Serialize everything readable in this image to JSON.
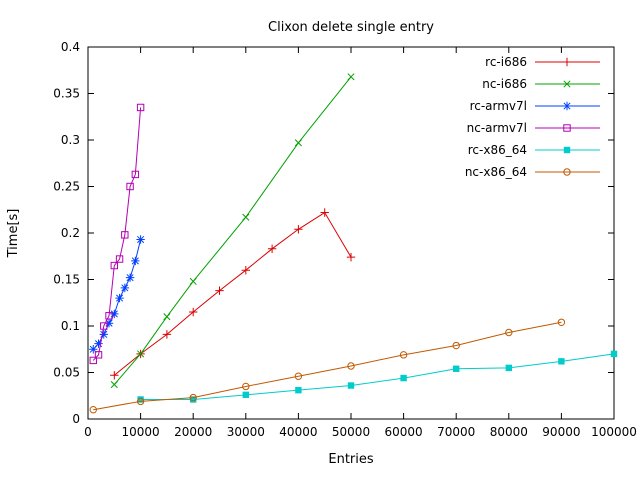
{
  "window": {
    "background": "#ffffff",
    "border_color": "#000000"
  },
  "chart_data": {
    "type": "line",
    "title": "Clixon delete single entry",
    "xlabel": "Entries",
    "ylabel": "Time[s]",
    "xlim": [
      0,
      100000
    ],
    "ylim": [
      0,
      0.4
    ],
    "grid": false,
    "legend_position": "top-right-inside",
    "x_ticks": [
      0,
      10000,
      20000,
      30000,
      40000,
      50000,
      60000,
      70000,
      80000,
      90000,
      100000
    ],
    "x_tick_labels": [
      "0",
      "10000",
      "20000",
      "30000",
      "40000",
      "50000",
      "60000",
      "70000",
      "80000",
      "90000",
      "100000"
    ],
    "y_ticks": [
      0,
      0.05,
      0.1,
      0.15,
      0.2,
      0.25,
      0.3,
      0.35,
      0.4
    ],
    "y_tick_labels": [
      "0",
      "0.05",
      "0.1",
      "0.15",
      "0.2",
      "0.25",
      "0.3",
      "0.35",
      "0.4"
    ],
    "series": [
      {
        "name": "rc-i686",
        "color": "#dd0000",
        "marker": "plus",
        "x": [
          5000,
          10000,
          15000,
          20000,
          25000,
          30000,
          35000,
          40000,
          45000,
          50000
        ],
        "y": [
          0.047,
          0.07,
          0.091,
          0.115,
          0.138,
          0.16,
          0.183,
          0.204,
          0.222,
          0.174
        ]
      },
      {
        "name": "nc-i686",
        "color": "#00a000",
        "marker": "cross",
        "x": [
          5000,
          10000,
          15000,
          20000,
          30000,
          40000,
          50000
        ],
        "y": [
          0.037,
          0.07,
          0.11,
          0.148,
          0.217,
          0.297,
          0.368
        ]
      },
      {
        "name": "rc-armv7l",
        "color": "#0040ff",
        "marker": "asterisk",
        "x": [
          1000,
          2000,
          3000,
          4000,
          5000,
          6000,
          7000,
          8000,
          9000,
          10000
        ],
        "y": [
          0.075,
          0.081,
          0.091,
          0.103,
          0.113,
          0.13,
          0.141,
          0.152,
          0.17,
          0.193
        ]
      },
      {
        "name": "nc-armv7l",
        "color": "#b400b4",
        "marker": "square-open",
        "x": [
          1000,
          2000,
          3000,
          4000,
          5000,
          6000,
          7000,
          8000,
          9000,
          10000
        ],
        "y": [
          0.063,
          0.069,
          0.1,
          0.111,
          0.165,
          0.172,
          0.198,
          0.25,
          0.263,
          0.335
        ]
      },
      {
        "name": "rc-x86_64",
        "color": "#00cccc",
        "marker": "square-filled",
        "x": [
          10000,
          20000,
          30000,
          40000,
          50000,
          60000,
          70000,
          80000,
          90000,
          100000
        ],
        "y": [
          0.021,
          0.021,
          0.026,
          0.031,
          0.036,
          0.044,
          0.054,
          0.055,
          0.062,
          0.07
        ]
      },
      {
        "name": "nc-x86_64",
        "color": "#c05a00",
        "marker": "circle-open",
        "x": [
          1000,
          10000,
          20000,
          30000,
          40000,
          50000,
          60000,
          70000,
          80000,
          90000
        ],
        "y": [
          0.01,
          0.019,
          0.023,
          0.035,
          0.046,
          0.057,
          0.069,
          0.079,
          0.093,
          0.104
        ]
      }
    ]
  }
}
